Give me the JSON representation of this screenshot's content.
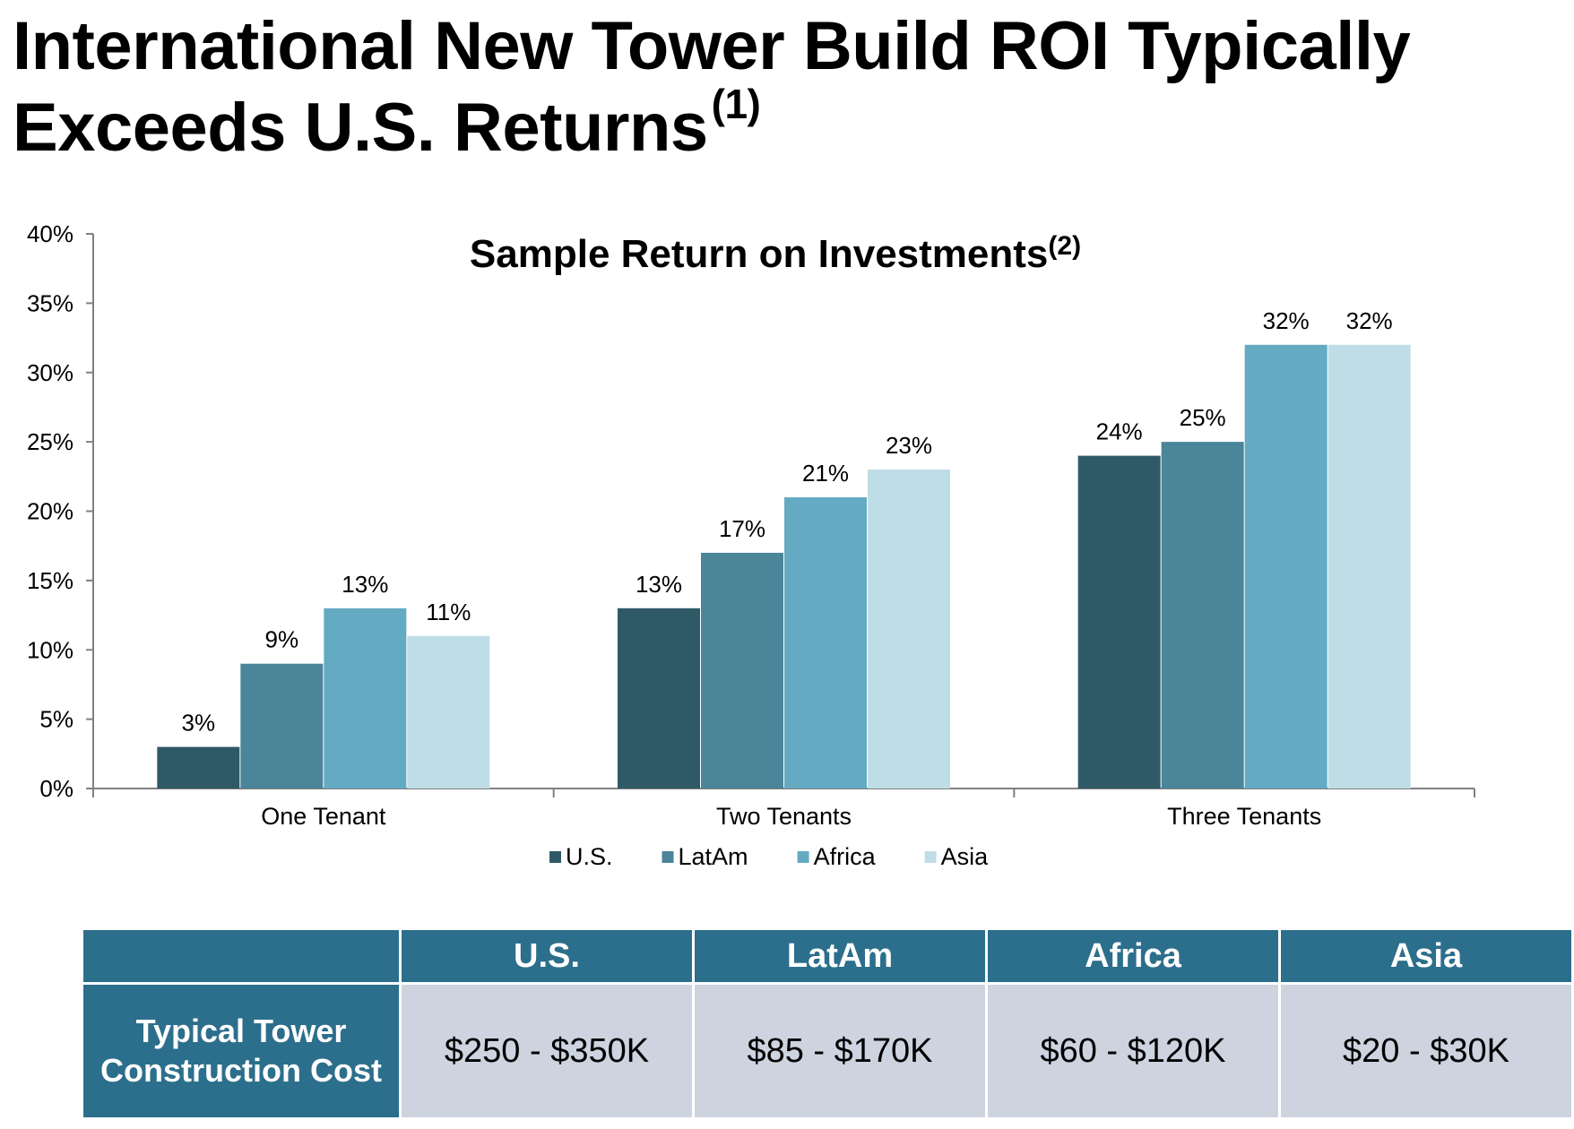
{
  "page": {
    "title": "International New Tower Build ROI Typically Exceeds U.S. Returns",
    "title_note": "(1)"
  },
  "chart_data": {
    "type": "bar",
    "title": "Sample Return on Investments",
    "title_note": "(2)",
    "categories": [
      "One Tenant",
      "Two Tenants",
      "Three Tenants"
    ],
    "series": [
      {
        "name": "U.S.",
        "color": "#305967",
        "values": [
          3,
          13,
          24
        ],
        "labels": [
          "3%",
          "13%",
          "24%"
        ]
      },
      {
        "name": "LatAm",
        "color": "#4a8599",
        "values": [
          9,
          17,
          25
        ],
        "labels": [
          "9%",
          "17%",
          "25%"
        ]
      },
      {
        "name": "Africa",
        "color": "#65aac3",
        "values": [
          13,
          21,
          32
        ],
        "labels": [
          "13%",
          "21%",
          "32%"
        ]
      },
      {
        "name": "Asia",
        "color": "#bedde6",
        "values": [
          11,
          23,
          32
        ],
        "labels": [
          "11%",
          "23%",
          "32%"
        ]
      }
    ],
    "ylim": [
      0,
      40
    ],
    "yticks": [
      "0%",
      "5%",
      "10%",
      "15%",
      "20%",
      "25%",
      "30%",
      "35%",
      "40%"
    ],
    "xlabel": "",
    "ylabel": "",
    "grid": false,
    "legend_position": "bottom"
  },
  "cost_table": {
    "headers": [
      "U.S.",
      "LatAm",
      "Africa",
      "Asia"
    ],
    "row_label": "Typical Tower Construction Cost",
    "values": [
      "$250 - $350K",
      "$85 - $170K",
      "$60 - $120K",
      "$20 - $30K"
    ],
    "header_color": "#2c6f8c",
    "cell_color": "#cdd4e0"
  }
}
